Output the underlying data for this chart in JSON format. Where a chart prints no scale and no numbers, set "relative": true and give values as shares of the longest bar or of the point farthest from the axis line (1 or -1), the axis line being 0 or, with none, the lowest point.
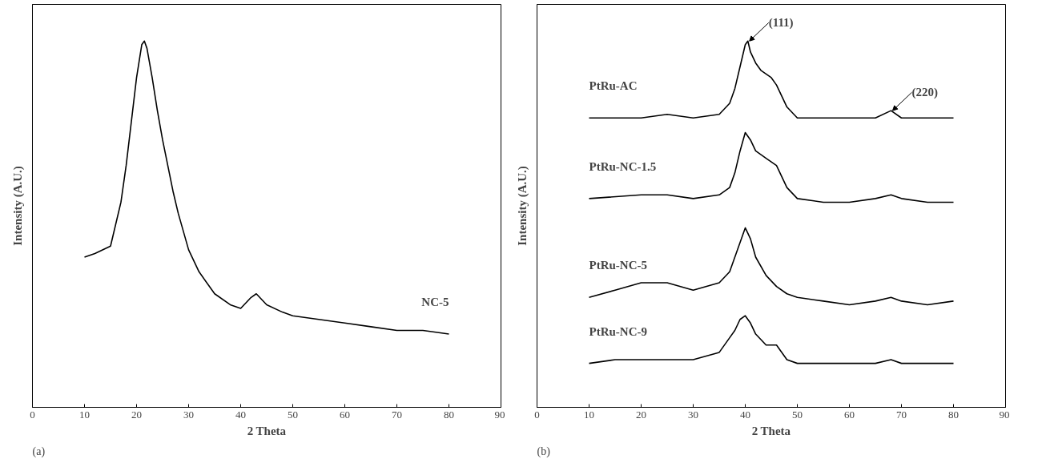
{
  "chart_data": [
    {
      "type": "line",
      "relative": true,
      "xlabel": "2 Theta",
      "ylabel": "Intensity (A.U.)",
      "xlim": [
        0,
        90
      ],
      "xticks": [
        0,
        10,
        20,
        30,
        40,
        50,
        60,
        70,
        80,
        90
      ],
      "tick_labels": "x",
      "grid": false,
      "legend": false,
      "annotations": [
        "(a)"
      ],
      "series": [
        {
          "name": "NC-5",
          "color": "#000000",
          "x": [
            10,
            12,
            15,
            17,
            18,
            19,
            20,
            21,
            21.5,
            22,
            23,
            24,
            25,
            26,
            27,
            28,
            30,
            32,
            35,
            38,
            40,
            42,
            43,
            45,
            48,
            50,
            55,
            60,
            65,
            70,
            75,
            80
          ],
          "values": [
            0.41,
            0.42,
            0.44,
            0.56,
            0.66,
            0.78,
            0.9,
            0.99,
            1.0,
            0.98,
            0.9,
            0.81,
            0.73,
            0.66,
            0.59,
            0.53,
            0.43,
            0.37,
            0.31,
            0.28,
            0.27,
            0.3,
            0.31,
            0.28,
            0.26,
            0.25,
            0.24,
            0.23,
            0.22,
            0.21,
            0.21,
            0.2
          ]
        }
      ]
    },
    {
      "type": "line",
      "relative": true,
      "xlabel": "2 Theta",
      "ylabel": "Intensity (A.U.)",
      "xlim": [
        0,
        90
      ],
      "xticks": [
        0,
        10,
        20,
        30,
        40,
        50,
        60,
        70,
        80,
        90
      ],
      "tick_labels": "x",
      "grid": false,
      "legend": false,
      "annotations": [
        {
          "text": "(111)",
          "x": 40.5,
          "y": 1.0
        },
        {
          "text": "(220)",
          "x": 68,
          "y": 0.81
        },
        "(b)"
      ],
      "series": [
        {
          "name": "PtRu-AC",
          "color": "#000000",
          "x": [
            10,
            20,
            25,
            30,
            35,
            37,
            38,
            39,
            40,
            40.5,
            41,
            42,
            43,
            45,
            46,
            47,
            48,
            50,
            55,
            60,
            65,
            68,
            70,
            75,
            80
          ],
          "values": [
            0.79,
            0.79,
            0.8,
            0.79,
            0.8,
            0.83,
            0.87,
            0.93,
            0.99,
            1.0,
            0.97,
            0.94,
            0.92,
            0.9,
            0.88,
            0.85,
            0.82,
            0.79,
            0.79,
            0.79,
            0.79,
            0.81,
            0.79,
            0.79,
            0.79
          ]
        },
        {
          "name": "PtRu-NC-1.5",
          "color": "#000000",
          "x": [
            10,
            20,
            25,
            30,
            35,
            37,
            38,
            39,
            40,
            41,
            42,
            44,
            46,
            48,
            50,
            55,
            60,
            65,
            68,
            70,
            75,
            80
          ],
          "values": [
            0.57,
            0.58,
            0.58,
            0.57,
            0.58,
            0.6,
            0.64,
            0.7,
            0.75,
            0.73,
            0.7,
            0.68,
            0.66,
            0.6,
            0.57,
            0.56,
            0.56,
            0.57,
            0.58,
            0.57,
            0.56,
            0.56
          ]
        },
        {
          "name": "PtRu-NC-5",
          "color": "#000000",
          "x": [
            10,
            15,
            20,
            25,
            30,
            35,
            37,
            38,
            39,
            40,
            41,
            42,
            44,
            46,
            48,
            50,
            55,
            60,
            65,
            68,
            70,
            75,
            80
          ],
          "values": [
            0.3,
            0.32,
            0.34,
            0.34,
            0.32,
            0.34,
            0.37,
            0.41,
            0.45,
            0.49,
            0.46,
            0.41,
            0.36,
            0.33,
            0.31,
            0.3,
            0.29,
            0.28,
            0.29,
            0.3,
            0.29,
            0.28,
            0.29
          ]
        },
        {
          "name": "PtRu-NC-9",
          "color": "#000000",
          "x": [
            10,
            15,
            20,
            25,
            30,
            35,
            37,
            38,
            39,
            40,
            41,
            42,
            44,
            46,
            48,
            50,
            55,
            60,
            65,
            68,
            70,
            75,
            80
          ],
          "values": [
            0.12,
            0.13,
            0.13,
            0.13,
            0.13,
            0.15,
            0.19,
            0.21,
            0.24,
            0.25,
            0.23,
            0.2,
            0.17,
            0.17,
            0.13,
            0.12,
            0.12,
            0.12,
            0.12,
            0.13,
            0.12,
            0.12,
            0.12
          ]
        }
      ]
    }
  ]
}
